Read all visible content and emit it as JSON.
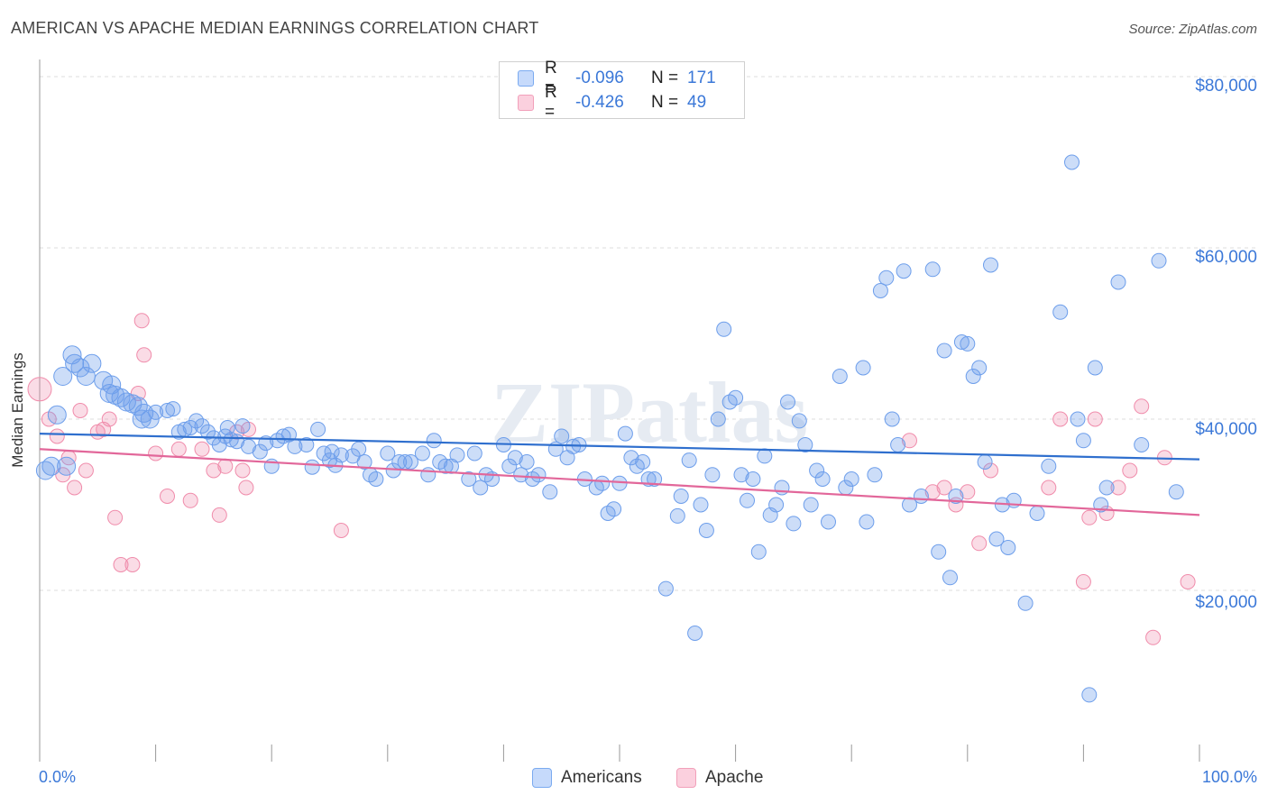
{
  "title": "AMERICAN VS APACHE MEDIAN EARNINGS CORRELATION CHART",
  "source": "Source: ZipAtlas.com",
  "watermark": "ZIPatlas",
  "legend": [
    {
      "r_label": "R =",
      "r_value": "-0.096",
      "n_label": "N =",
      "n_value": "171",
      "color": "#7aaaf0"
    },
    {
      "r_label": "R =",
      "r_value": "-0.426",
      "n_label": "N =",
      "n_value": "49",
      "color": "#f2a0ba"
    }
  ],
  "bottom_legend": [
    "Americans",
    "Apache"
  ],
  "chart_data": {
    "type": "scatter",
    "title": "AMERICAN VS APACHE MEDIAN EARNINGS CORRELATION CHART",
    "xlabel": "",
    "ylabel": "Median Earnings",
    "x_ticks": [
      "0.0%",
      "100.0%"
    ],
    "y_ticks": [
      "$20,000",
      "$40,000",
      "$60,000",
      "$80,000"
    ],
    "xlim": [
      0,
      100
    ],
    "ylim": [
      0,
      82000
    ],
    "grid": true,
    "colors": {
      "Americans": "#6d9eeb",
      "Apache": "#f08cab",
      "americans_line": "#2f6fce",
      "apache_line": "#e2679a"
    },
    "series": [
      {
        "name": "Americans",
        "trend": [
          [
            0,
            38300
          ],
          [
            100,
            35300
          ]
        ],
        "points": [
          [
            0.5,
            34000
          ],
          [
            1,
            34500
          ],
          [
            1.5,
            40500
          ],
          [
            2,
            45000
          ],
          [
            2.8,
            47500
          ],
          [
            3,
            46500
          ],
          [
            3.5,
            46000
          ],
          [
            4.5,
            46500
          ],
          [
            5.5,
            44500
          ],
          [
            6,
            43000
          ],
          [
            6.5,
            42800
          ],
          [
            7,
            42500
          ],
          [
            7.5,
            42000
          ],
          [
            8,
            41800
          ],
          [
            8.5,
            41500
          ],
          [
            9,
            40700
          ],
          [
            9.5,
            40000
          ],
          [
            10,
            40800
          ],
          [
            11,
            41000
          ],
          [
            11.5,
            41200
          ],
          [
            12,
            38500
          ],
          [
            13,
            39000
          ],
          [
            13.5,
            39800
          ],
          [
            14,
            39200
          ],
          [
            14.5,
            38500
          ],
          [
            15,
            37800
          ],
          [
            15.5,
            37000
          ],
          [
            16,
            38000
          ],
          [
            16.5,
            37600
          ],
          [
            17,
            37400
          ],
          [
            17.5,
            39200
          ],
          [
            18,
            36800
          ],
          [
            19,
            36200
          ],
          [
            19.5,
            37200
          ],
          [
            20,
            34500
          ],
          [
            20.5,
            37500
          ],
          [
            21,
            38000
          ],
          [
            21.5,
            38200
          ],
          [
            22,
            36800
          ],
          [
            23,
            37000
          ],
          [
            23.5,
            34400
          ],
          [
            24,
            38800
          ],
          [
            24.5,
            36000
          ],
          [
            25,
            35200
          ],
          [
            25.5,
            34600
          ],
          [
            26,
            35800
          ],
          [
            27,
            35700
          ],
          [
            27.5,
            36500
          ],
          [
            28,
            35000
          ],
          [
            28.5,
            33500
          ],
          [
            29,
            33000
          ],
          [
            30,
            36000
          ],
          [
            30.5,
            34000
          ],
          [
            31,
            35000
          ],
          [
            31.5,
            35000
          ],
          [
            32,
            35000
          ],
          [
            33,
            36000
          ],
          [
            33.5,
            33500
          ],
          [
            34,
            37500
          ],
          [
            34.5,
            35000
          ],
          [
            35,
            34500
          ],
          [
            35.5,
            34500
          ],
          [
            36,
            35800
          ],
          [
            37,
            33000
          ],
          [
            37.5,
            36000
          ],
          [
            38,
            32000
          ],
          [
            38.5,
            33500
          ],
          [
            39,
            33000
          ],
          [
            40,
            37000
          ],
          [
            40.5,
            34500
          ],
          [
            41,
            35500
          ],
          [
            41.5,
            33500
          ],
          [
            42,
            35000
          ],
          [
            42.5,
            33000
          ],
          [
            43,
            33500
          ],
          [
            44,
            31500
          ],
          [
            44.5,
            36500
          ],
          [
            45,
            38000
          ],
          [
            45.5,
            35500
          ],
          [
            46,
            36800
          ],
          [
            46.5,
            37000
          ],
          [
            47,
            33000
          ],
          [
            48,
            32000
          ],
          [
            48.5,
            32500
          ],
          [
            49,
            29000
          ],
          [
            49.5,
            29500
          ],
          [
            50,
            32500
          ],
          [
            50.5,
            38300
          ],
          [
            51,
            35500
          ],
          [
            51.5,
            34500
          ],
          [
            52,
            35000
          ],
          [
            52.5,
            33000
          ],
          [
            53,
            33000
          ],
          [
            54,
            20200
          ],
          [
            55,
            28700
          ],
          [
            55.3,
            31000
          ],
          [
            56,
            35200
          ],
          [
            56.5,
            15000
          ],
          [
            57,
            30000
          ],
          [
            57.5,
            27000
          ],
          [
            58,
            33500
          ],
          [
            58.5,
            40000
          ],
          [
            59,
            50500
          ],
          [
            59.5,
            42000
          ],
          [
            60,
            42500
          ],
          [
            60.5,
            33500
          ],
          [
            61,
            30500
          ],
          [
            61.5,
            33000
          ],
          [
            62,
            24500
          ],
          [
            62.5,
            35700
          ],
          [
            63,
            28800
          ],
          [
            63.5,
            30000
          ],
          [
            64,
            32000
          ],
          [
            64.5,
            42000
          ],
          [
            65,
            27800
          ],
          [
            65.5,
            39800
          ],
          [
            66,
            37000
          ],
          [
            66.5,
            30000
          ],
          [
            67,
            34000
          ],
          [
            67.5,
            33000
          ],
          [
            68,
            28000
          ],
          [
            69,
            45000
          ],
          [
            69.5,
            32000
          ],
          [
            70,
            33000
          ],
          [
            71,
            46000
          ],
          [
            71.3,
            28000
          ],
          [
            72,
            33500
          ],
          [
            72.5,
            55000
          ],
          [
            73,
            56500
          ],
          [
            73.5,
            40000
          ],
          [
            74,
            37000
          ],
          [
            74.5,
            57300
          ],
          [
            75,
            30000
          ],
          [
            76,
            31000
          ],
          [
            77,
            57500
          ],
          [
            77.5,
            24500
          ],
          [
            78,
            48000
          ],
          [
            78.5,
            21500
          ],
          [
            79,
            31000
          ],
          [
            79.5,
            49000
          ],
          [
            80,
            48800
          ],
          [
            80.5,
            45000
          ],
          [
            81,
            46000
          ],
          [
            81.5,
            35000
          ],
          [
            82,
            58000
          ],
          [
            82.5,
            26000
          ],
          [
            83,
            30000
          ],
          [
            83.5,
            25000
          ],
          [
            84,
            30500
          ],
          [
            85,
            18500
          ],
          [
            86,
            29000
          ],
          [
            87,
            34500
          ],
          [
            88,
            52500
          ],
          [
            89,
            70000
          ],
          [
            89.5,
            40000
          ],
          [
            90,
            37500
          ],
          [
            90.5,
            7800
          ],
          [
            91,
            46000
          ],
          [
            91.5,
            30000
          ],
          [
            92,
            32000
          ],
          [
            93,
            56000
          ],
          [
            95,
            37000
          ],
          [
            96.5,
            58500
          ],
          [
            98,
            31500
          ],
          [
            2.3,
            34500
          ],
          [
            4,
            45000
          ],
          [
            6.2,
            44000
          ],
          [
            8.8,
            40000
          ],
          [
            12.5,
            38800
          ],
          [
            16.2,
            39000
          ],
          [
            25.2,
            36200
          ]
        ]
      },
      {
        "name": "Apache",
        "trend": [
          [
            0,
            36500
          ],
          [
            100,
            28800
          ]
        ],
        "points": [
          [
            0,
            43500
          ],
          [
            0.8,
            40000
          ],
          [
            1.5,
            38000
          ],
          [
            2,
            33500
          ],
          [
            2.5,
            35500
          ],
          [
            3,
            32000
          ],
          [
            3.5,
            41000
          ],
          [
            4,
            34000
          ],
          [
            5,
            38500
          ],
          [
            5.5,
            38800
          ],
          [
            6,
            40000
          ],
          [
            6.5,
            28500
          ],
          [
            7,
            23000
          ],
          [
            8,
            23000
          ],
          [
            8.5,
            43000
          ],
          [
            8.8,
            51500
          ],
          [
            9,
            47500
          ],
          [
            10,
            36000
          ],
          [
            11,
            31000
          ],
          [
            12,
            36500
          ],
          [
            13,
            30500
          ],
          [
            14,
            36500
          ],
          [
            15,
            34000
          ],
          [
            15.5,
            28800
          ],
          [
            16,
            34500
          ],
          [
            17,
            38500
          ],
          [
            17.5,
            34000
          ],
          [
            17.8,
            32000
          ],
          [
            18,
            38800
          ],
          [
            26,
            27000
          ],
          [
            75,
            37500
          ],
          [
            77,
            31500
          ],
          [
            78,
            32000
          ],
          [
            79,
            30000
          ],
          [
            80,
            31500
          ],
          [
            81,
            25500
          ],
          [
            82,
            34000
          ],
          [
            87,
            32000
          ],
          [
            88,
            40000
          ],
          [
            90,
            21000
          ],
          [
            90.5,
            28500
          ],
          [
            91,
            40000
          ],
          [
            92,
            29000
          ],
          [
            93,
            32000
          ],
          [
            94,
            34000
          ],
          [
            95,
            41500
          ],
          [
            96,
            14500
          ],
          [
            97,
            35500
          ],
          [
            99,
            21000
          ]
        ]
      }
    ]
  }
}
